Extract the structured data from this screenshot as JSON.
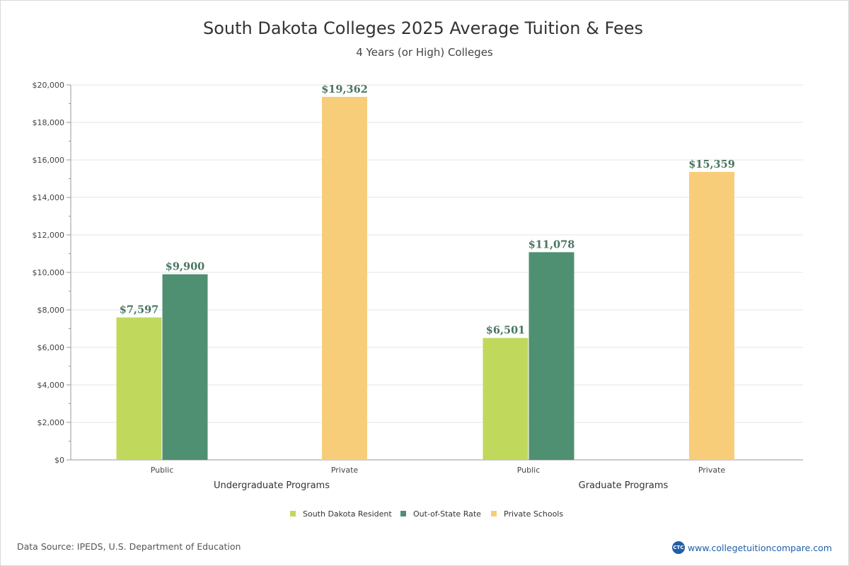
{
  "chart_data": {
    "type": "bar",
    "title": "South Dakota Colleges 2025 Average Tuition & Fees",
    "subtitle": "4 Years (or High)  Colleges",
    "ylim": [
      0,
      20000
    ],
    "yticks": [
      0,
      2000,
      4000,
      6000,
      8000,
      10000,
      12000,
      14000,
      16000,
      18000,
      20000
    ],
    "ytick_labels": [
      "$0",
      "$2,000",
      "$4,000",
      "$6,000",
      "$8,000",
      "$10,000",
      "$12,000",
      "$14,000",
      "$16,000",
      "$18,000",
      "$20,000"
    ],
    "groups": [
      {
        "label": "Undergraduate Programs",
        "subgroups": [
          {
            "label": "Public",
            "bars": [
              {
                "series": "South Dakota Resident",
                "value": 7597,
                "label": "$7,597"
              },
              {
                "series": "Out-of-State Rate",
                "value": 9900,
                "label": "$9,900"
              }
            ]
          },
          {
            "label": "Private",
            "bars": [
              {
                "series": "Private Schools",
                "value": 19362,
                "label": "$19,362"
              }
            ]
          }
        ]
      },
      {
        "label": "Graduate Programs",
        "subgroups": [
          {
            "label": "Public",
            "bars": [
              {
                "series": "South Dakota Resident",
                "value": 6501,
                "label": "$6,501"
              },
              {
                "series": "Out-of-State Rate",
                "value": 11078,
                "label": "$11,078"
              }
            ]
          },
          {
            "label": "Private",
            "bars": [
              {
                "series": "Private Schools",
                "value": 15359,
                "label": "$15,359"
              }
            ]
          }
        ]
      }
    ],
    "legend": [
      {
        "name": "South Dakota Resident",
        "color": "#c0d95d"
      },
      {
        "name": "Out-of-State Rate",
        "color": "#4f9072"
      },
      {
        "name": "Private Schools",
        "color": "#f8cd7a"
      }
    ],
    "legend_position": "bottom-center",
    "grid": true
  },
  "footer": {
    "source": "Data Source: IPEDS, U.S. Department of Education",
    "brand_logo": "CTC",
    "brand_url": "www.collegetuitioncompare.com"
  },
  "colors": {
    "label_text": "#4a7560",
    "axis_text": "#444444",
    "grid": "#e6e6e6",
    "axis": "#999999"
  }
}
